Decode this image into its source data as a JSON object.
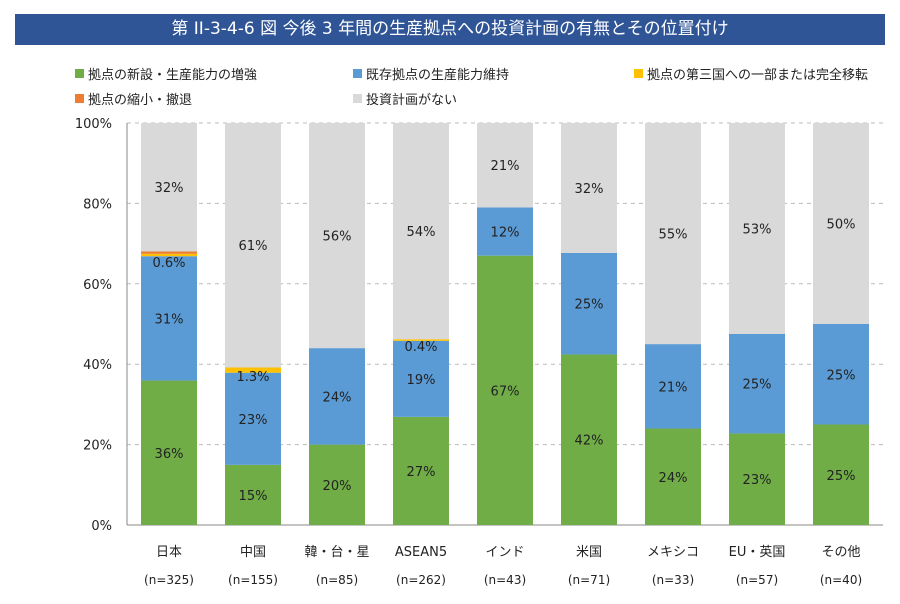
{
  "title": "第 II-3-4-6 図  今後 3 年間の生産拠点への投資計画の有無とその位置付け",
  "chart_data": {
    "type": "bar",
    "stacked": true,
    "categories": [
      "日本",
      "中国",
      "韓・台・星",
      "ASEAN5",
      "インド",
      "米国",
      "メキシコ",
      "EU・英国",
      "その他"
    ],
    "sample_sizes": [
      "(n=325)",
      "(n=155)",
      "(n=85)",
      "(n=262)",
      "(n=43)",
      "(n=71)",
      "(n=33)",
      "(n=57)",
      "(n=40)"
    ],
    "series": [
      {
        "name": "拠点の新設・生産能力の増強",
        "color": "#70AD47",
        "values": [
          36,
          15,
          20,
          27,
          67,
          42,
          24,
          23,
          25
        ]
      },
      {
        "name": "既存拠点の生産能力維持",
        "color": "#5B9BD5",
        "values": [
          31,
          23,
          24,
          19,
          12,
          25,
          21,
          25,
          25
        ]
      },
      {
        "name": "拠点の第三国への一部または完全移転",
        "color": "#FFC000",
        "values": [
          0.6,
          1.3,
          0,
          0.4,
          0,
          0,
          0,
          0,
          0
        ]
      },
      {
        "name": "拠点の縮小・撤退",
        "color": "#ED7D31",
        "values": [
          0.6,
          0,
          0,
          0,
          0,
          0,
          0,
          0,
          0
        ]
      },
      {
        "name": "投資計画がない",
        "color": "#D9D9D9",
        "values": [
          32,
          61,
          56,
          54,
          21,
          32,
          55,
          53,
          50
        ]
      }
    ],
    "yticks": [
      "0%",
      "20%",
      "40%",
      "60%",
      "80%",
      "100%"
    ],
    "ylim": [
      0,
      100
    ],
    "grid": "horizontal dashed",
    "legend": "top"
  }
}
